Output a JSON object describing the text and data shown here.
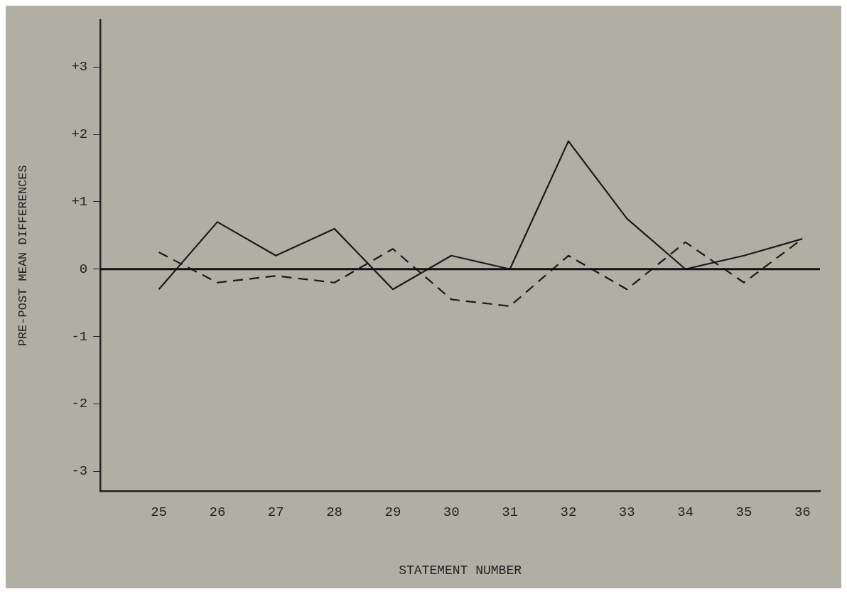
{
  "chart_data": {
    "type": "line",
    "xlabel": "STATEMENT NUMBER",
    "ylabel": "PRE-POST MEAN DIFFERENCES",
    "x": [
      25,
      26,
      27,
      28,
      29,
      30,
      31,
      32,
      33,
      34,
      35,
      36
    ],
    "series": [
      {
        "color": "#1a1a1a",
        "line_style": "solid",
        "values": [
          -0.3,
          0.7,
          0.2,
          0.6,
          -0.3,
          0.2,
          0,
          1.9,
          0.75,
          0,
          0.2,
          0.45
        ]
      },
      {
        "color": "#1a1a1a",
        "line_style": "dashed",
        "values": [
          0.25,
          -0.2,
          -0.1,
          -0.2,
          0.3,
          -0.45,
          -0.55,
          0.2,
          -0.3,
          0.4,
          -0.2,
          0.45
        ]
      }
    ],
    "xlim": [
      24,
      36.3
    ],
    "xticks": [
      25,
      26,
      27,
      28,
      29,
      30,
      31,
      32,
      33,
      34,
      35,
      36
    ],
    "ylim": [
      -3.3,
      3.7
    ],
    "yticks": [
      {
        "value": 3,
        "label": "+3"
      },
      {
        "value": 2,
        "label": "+2"
      },
      {
        "value": 1,
        "label": "+1"
      },
      0,
      -1,
      -2,
      -3
    ],
    "ref_lines": [
      {
        "axis": "y",
        "value": 0,
        "color": "#111111",
        "line_style": "solid"
      }
    ],
    "grid": false,
    "legend": false,
    "marker": "none"
  }
}
